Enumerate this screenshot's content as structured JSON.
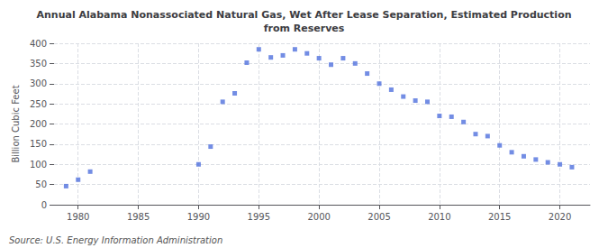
{
  "chart_data": {
    "type": "scatter",
    "title": "Annual Alabama Nonassociated Natural Gas, Wet After Lease Separation, Estimated Production\nfrom Reserves",
    "ylabel": "Billion Cubic Feet",
    "annotations": [
      "Source: U.S. Energy Information Administration"
    ],
    "x": [
      1979,
      1980,
      1981,
      1990,
      1991,
      1992,
      1993,
      1994,
      1995,
      1996,
      1997,
      1998,
      1999,
      2000,
      2001,
      2002,
      2003,
      2004,
      2005,
      2006,
      2007,
      2008,
      2009,
      2010,
      2011,
      2012,
      2013,
      2014,
      2015,
      2016,
      2017,
      2018,
      2019,
      2020,
      2021
    ],
    "values": [
      46,
      62,
      82,
      100,
      144,
      255,
      276,
      352,
      385,
      365,
      370,
      385,
      375,
      363,
      347,
      363,
      350,
      325,
      300,
      285,
      268,
      258,
      255,
      220,
      218,
      205,
      175,
      170,
      147,
      130,
      120,
      112,
      105,
      100,
      93
    ],
    "marker": "square",
    "xlim": [
      1978,
      2022.5
    ],
    "xticks": [
      1980,
      1985,
      1990,
      1995,
      2000,
      2005,
      2010,
      2015,
      2020
    ],
    "ylim": [
      0,
      400
    ],
    "yticks": [
      0,
      50,
      100,
      150,
      200,
      250,
      300,
      350,
      400
    ],
    "grid": true
  }
}
